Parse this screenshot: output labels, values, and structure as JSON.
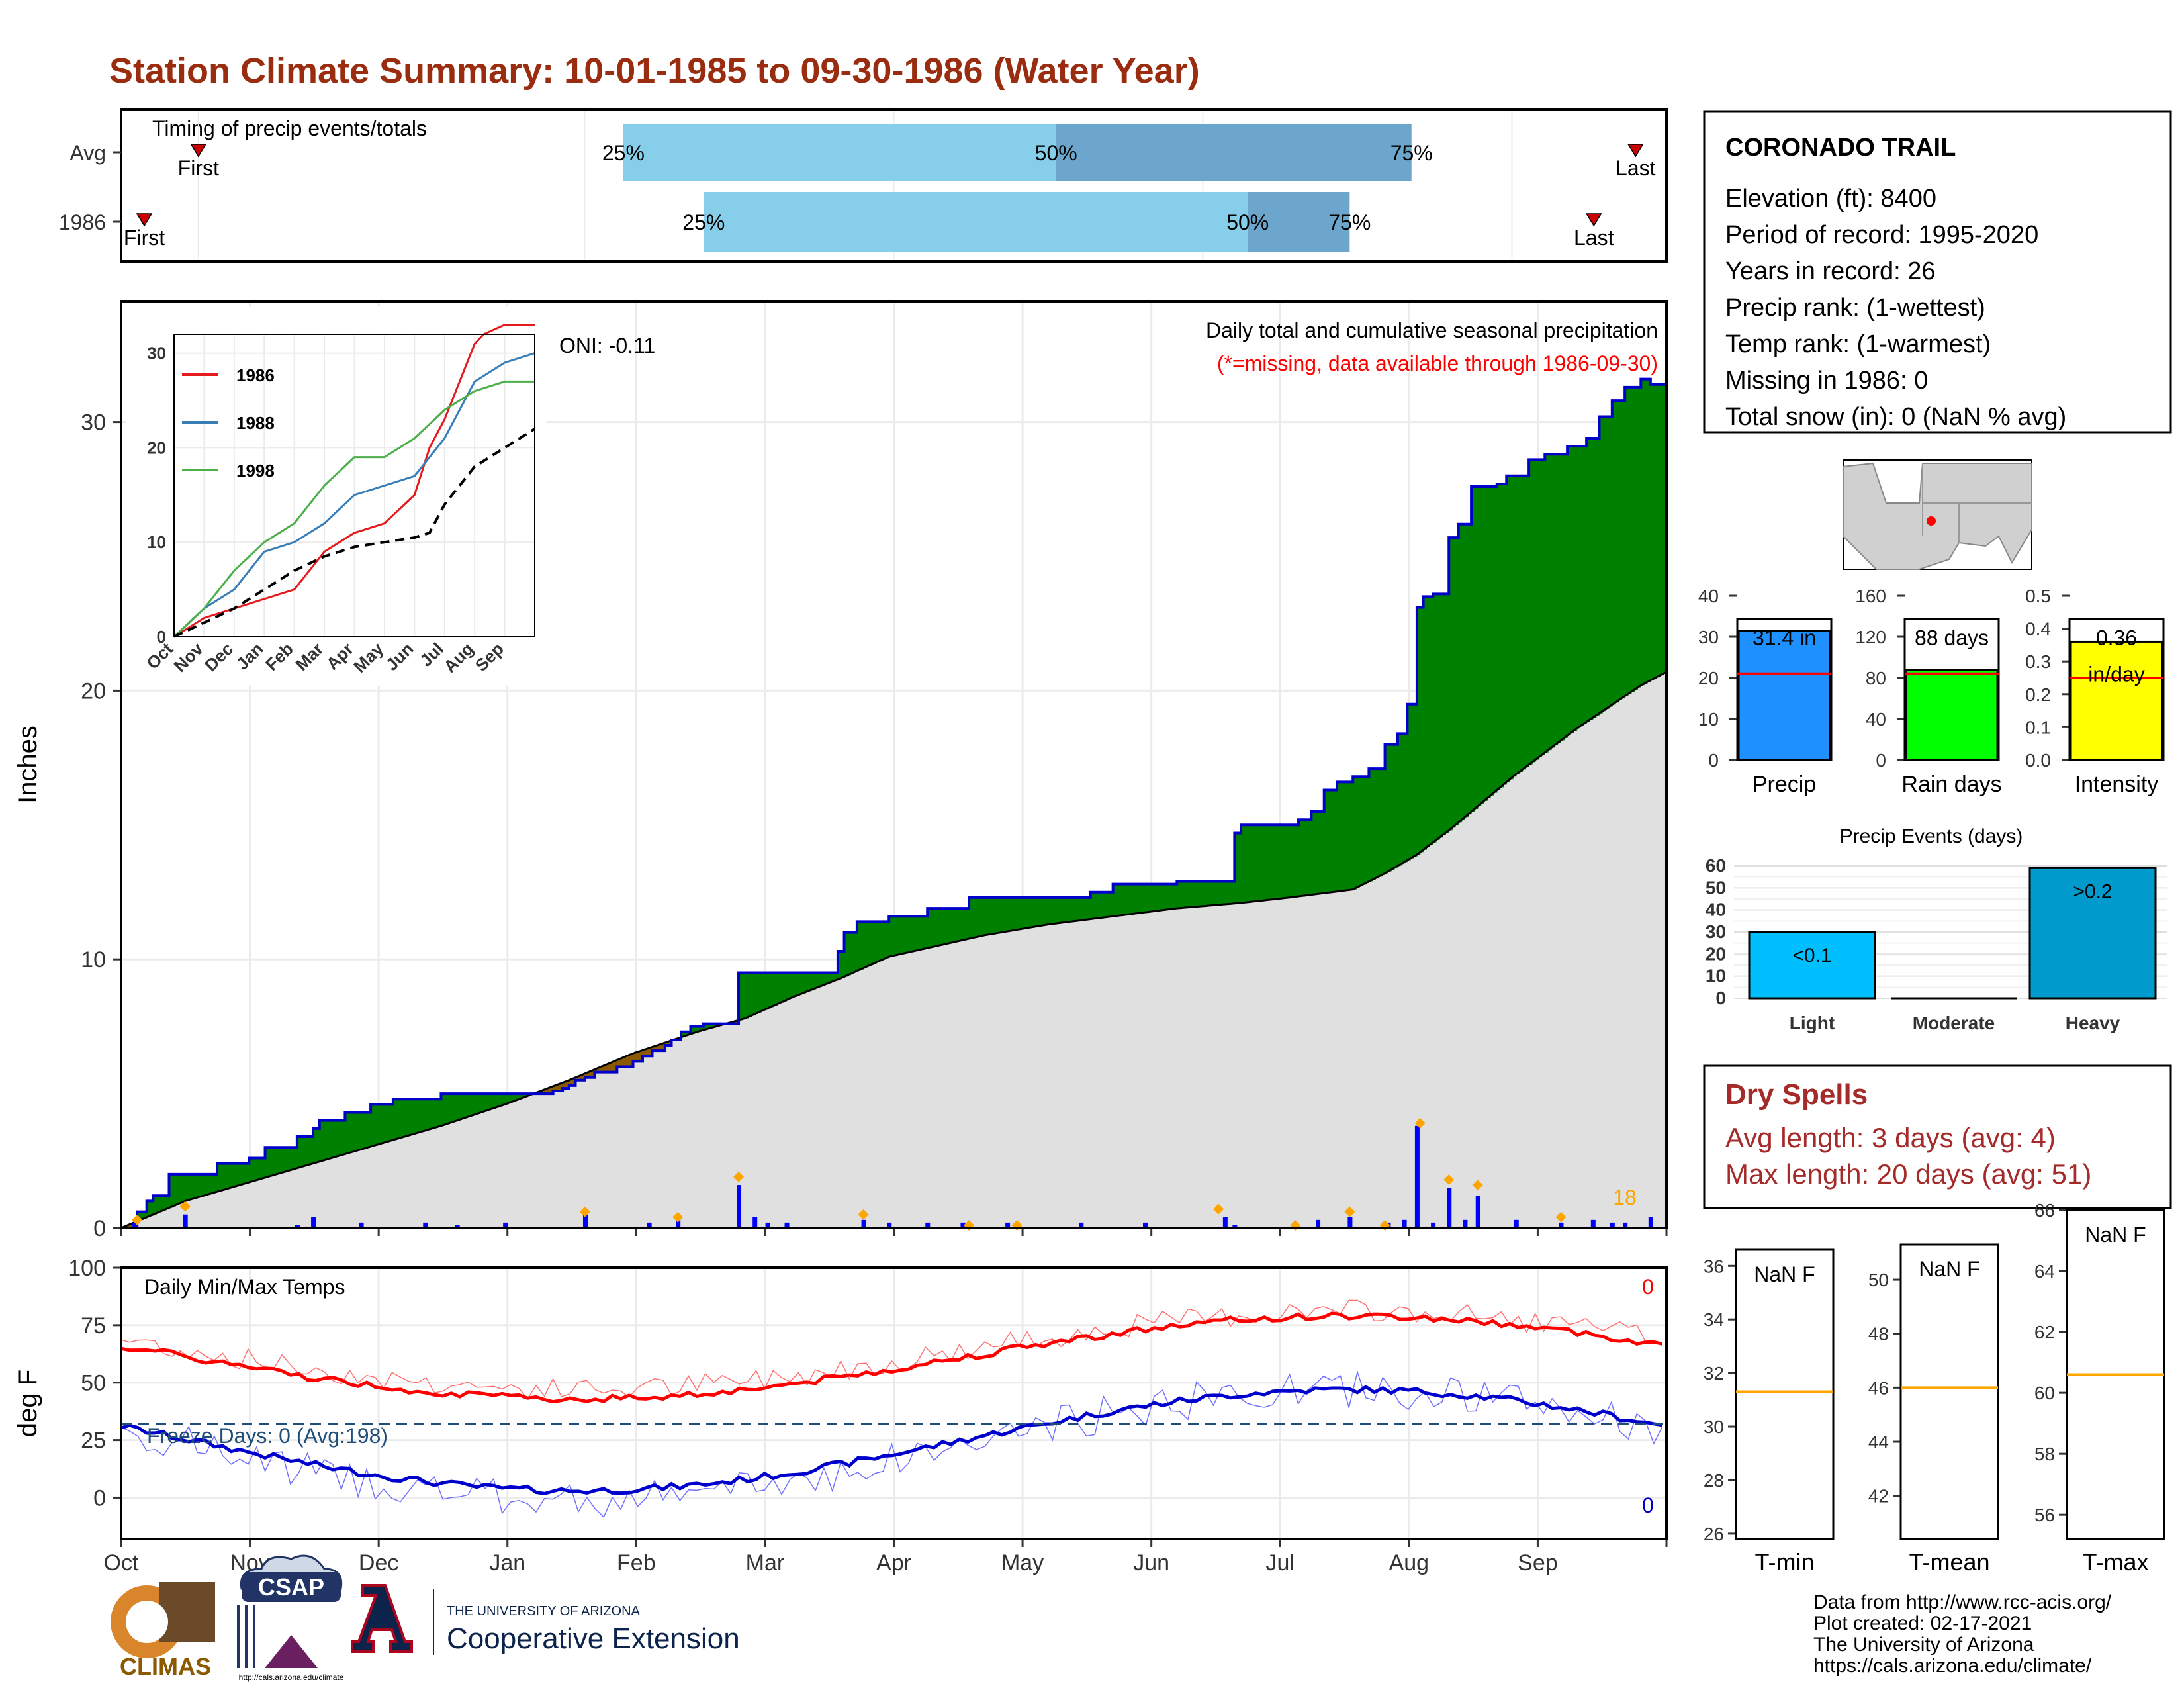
{
  "title": "Station Climate Summary: 10-01-1985 to 09-30-1986 (Water Year)",
  "colors": {
    "title": "#9a2d10",
    "precip_above": "#008000",
    "precip_below": "#8b5a00",
    "avg_fill": "#e0e0e0",
    "blue_line": "#0000cc",
    "daily_bar": "#0000ff",
    "orange_mark": "#ffa500",
    "tmax": "#ff0000",
    "tmin": "#0000ff",
    "light_blue": "#87ceeb",
    "steel_blue": "#6ca6cd",
    "red_marker": "#cc0000"
  },
  "chart_data": [
    {
      "id": "timing",
      "type": "bar",
      "title": "Timing of precip events/totals",
      "rows": [
        {
          "label": "Avg",
          "first": 0.05,
          "last": 0.98,
          "p25": 0.325,
          "p50": 0.605,
          "p75": 0.835,
          "labels": {
            "first": "First",
            "last": "Last",
            "p25": "25%",
            "p50": "50%",
            "p75": "75%"
          }
        },
        {
          "label": "1986",
          "first": 0.015,
          "last": 0.953,
          "p25": 0.377,
          "p50": 0.729,
          "p75": 0.795,
          "labels": {
            "first": "First",
            "last": "Last",
            "p25": "25%",
            "p50": "50%",
            "p75": "75%"
          }
        }
      ]
    },
    {
      "id": "precip",
      "type": "area",
      "title": "Daily total and cumulative seasonal precipitation",
      "subtitle": "(*=missing, data available through 1986-09-30)",
      "ylabel": "Inches",
      "ylim": [
        0,
        34.5
      ],
      "yticks": [
        0,
        10,
        20,
        30
      ],
      "annotation": "ONI: -0.11",
      "corner_value": "18",
      "cumulative_1986": [
        [
          0,
          0
        ],
        [
          5,
          0.6
        ],
        [
          8,
          1.0
        ],
        [
          10,
          1.2
        ],
        [
          15,
          2.0
        ],
        [
          30,
          2.4
        ],
        [
          40,
          2.6
        ],
        [
          45,
          3.0
        ],
        [
          55,
          3.4
        ],
        [
          60,
          3.7
        ],
        [
          62,
          4.0
        ],
        [
          70,
          4.3
        ],
        [
          78,
          4.6
        ],
        [
          85,
          4.8
        ],
        [
          98,
          4.8
        ],
        [
          100,
          5.0
        ],
        [
          117,
          5.0
        ],
        [
          130,
          5.0
        ],
        [
          135,
          5.1
        ],
        [
          138,
          5.2
        ],
        [
          140,
          5.3
        ],
        [
          142,
          5.5
        ],
        [
          145,
          5.6
        ],
        [
          148,
          5.8
        ],
        [
          155,
          6.0
        ],
        [
          160,
          6.2
        ],
        [
          163,
          6.4
        ],
        [
          166,
          6.6
        ],
        [
          170,
          6.8
        ],
        [
          172,
          7.0
        ],
        [
          175,
          7.3
        ],
        [
          178,
          7.5
        ],
        [
          182,
          7.6
        ],
        [
          192,
          7.6
        ],
        [
          193,
          9.5
        ],
        [
          222,
          9.5
        ],
        [
          224,
          10.3
        ],
        [
          226,
          11.0
        ],
        [
          230,
          11.4
        ],
        [
          240,
          11.6
        ],
        [
          252,
          11.9
        ],
        [
          265,
          12.3
        ],
        [
          280,
          12.3
        ],
        [
          297,
          12.3
        ],
        [
          303,
          12.5
        ],
        [
          310,
          12.8
        ],
        [
          330,
          12.9
        ],
        [
          345,
          12.9
        ],
        [
          348,
          14.7
        ],
        [
          350,
          15.0
        ],
        [
          362,
          15.0
        ],
        [
          368,
          15.2
        ],
        [
          372,
          15.5
        ],
        [
          376,
          16.3
        ],
        [
          380,
          16.6
        ],
        [
          385,
          16.8
        ],
        [
          390,
          17.1
        ],
        [
          395,
          18.0
        ],
        [
          399,
          18.4
        ],
        [
          402,
          19.5
        ],
        [
          405,
          23.1
        ],
        [
          407,
          23.5
        ],
        [
          410,
          23.6
        ],
        [
          415,
          25.7
        ],
        [
          418,
          26.2
        ],
        [
          422,
          27.6
        ],
        [
          430,
          27.7
        ],
        [
          433,
          28.0
        ],
        [
          440,
          28.6
        ],
        [
          445,
          28.8
        ],
        [
          452,
          29.1
        ],
        [
          458,
          29.4
        ],
        [
          462,
          30.2
        ],
        [
          466,
          30.8
        ],
        [
          470,
          31.3
        ],
        [
          475,
          31.6
        ],
        [
          478,
          31.4
        ],
        [
          483,
          31.4
        ]
      ],
      "cumulative_avg": [
        [
          0,
          0
        ],
        [
          10,
          0.5
        ],
        [
          20,
          1.0
        ],
        [
          40,
          1.7
        ],
        [
          60,
          2.4
        ],
        [
          80,
          3.1
        ],
        [
          100,
          3.8
        ],
        [
          120,
          4.6
        ],
        [
          140,
          5.5
        ],
        [
          160,
          6.5
        ],
        [
          180,
          7.3
        ],
        [
          195,
          7.8
        ],
        [
          210,
          8.6
        ],
        [
          225,
          9.3
        ],
        [
          240,
          10.1
        ],
        [
          255,
          10.5
        ],
        [
          270,
          10.9
        ],
        [
          290,
          11.3
        ],
        [
          310,
          11.6
        ],
        [
          330,
          11.9
        ],
        [
          350,
          12.1
        ],
        [
          365,
          12.3
        ],
        [
          385,
          12.6
        ],
        [
          395,
          13.2
        ],
        [
          405,
          13.9
        ],
        [
          415,
          14.8
        ],
        [
          425,
          15.8
        ],
        [
          435,
          16.8
        ],
        [
          445,
          17.7
        ],
        [
          455,
          18.6
        ],
        [
          465,
          19.4
        ],
        [
          475,
          20.2
        ],
        [
          483,
          20.7
        ]
      ],
      "daily": [
        [
          4,
          0.2
        ],
        [
          20,
          0.5
        ],
        [
          55,
          0.1
        ],
        [
          60,
          0.4
        ],
        [
          75,
          0.2
        ],
        [
          95,
          0.2
        ],
        [
          105,
          0.1
        ],
        [
          120,
          0.2
        ],
        [
          145,
          0.5
        ],
        [
          165,
          0.2
        ],
        [
          174,
          0.3
        ],
        [
          193,
          1.6
        ],
        [
          198,
          0.4
        ],
        [
          202,
          0.2
        ],
        [
          208,
          0.2
        ],
        [
          232,
          0.3
        ],
        [
          240,
          0.2
        ],
        [
          252,
          0.2
        ],
        [
          263,
          0.2
        ],
        [
          277,
          0.2
        ],
        [
          300,
          0.2
        ],
        [
          320,
          0.2
        ],
        [
          345,
          0.4
        ],
        [
          348,
          0.1
        ],
        [
          374,
          0.3
        ],
        [
          384,
          0.4
        ],
        [
          396,
          0.2
        ],
        [
          401,
          0.3
        ],
        [
          405,
          3.8
        ],
        [
          410,
          0.2
        ],
        [
          415,
          1.5
        ],
        [
          420,
          0.3
        ],
        [
          424,
          1.2
        ],
        [
          436,
          0.3
        ],
        [
          450,
          0.2
        ],
        [
          460,
          0.3
        ],
        [
          466,
          0.2
        ],
        [
          470,
          0.2
        ],
        [
          478,
          0.4
        ]
      ],
      "markers": [
        [
          5,
          0.3
        ],
        [
          20,
          0.8
        ],
        [
          145,
          0.6
        ],
        [
          174,
          0.4
        ],
        [
          193,
          1.9
        ],
        [
          232,
          0.5
        ],
        [
          265,
          0.1
        ],
        [
          280,
          0.1
        ],
        [
          343,
          0.7
        ],
        [
          367,
          0.1
        ],
        [
          384,
          0.6
        ],
        [
          395,
          0.1
        ],
        [
          406,
          3.9
        ],
        [
          415,
          1.8
        ],
        [
          424,
          1.6
        ],
        [
          450,
          0.4
        ]
      ]
    },
    {
      "id": "inset",
      "type": "line",
      "xticks": [
        "Oct",
        "Nov",
        "Dec",
        "Jan",
        "Feb",
        "Mar",
        "Apr",
        "May",
        "Jun",
        "Jul",
        "Aug",
        "Sep"
      ],
      "yticks": [
        0,
        10,
        20,
        30
      ],
      "ylim": [
        0,
        32
      ],
      "series": [
        {
          "name": "1986",
          "color": "#e41a1c",
          "values": [
            [
              0,
              0
            ],
            [
              0.5,
              1
            ],
            [
              1,
              2
            ],
            [
              2,
              3
            ],
            [
              3,
              4
            ],
            [
              4,
              5
            ],
            [
              5,
              9
            ],
            [
              6,
              11
            ],
            [
              7,
              12
            ],
            [
              8,
              15
            ],
            [
              8.5,
              20
            ],
            [
              9,
              23
            ],
            [
              9.5,
              27
            ],
            [
              10,
              31
            ],
            [
              10.3,
              32
            ],
            [
              11,
              33
            ],
            [
              12,
              33
            ]
          ]
        },
        {
          "name": "1988",
          "color": "#377eb8",
          "values": [
            [
              0,
              0
            ],
            [
              1,
              3
            ],
            [
              2,
              5
            ],
            [
              3,
              9
            ],
            [
              4,
              10
            ],
            [
              5,
              12
            ],
            [
              6,
              15
            ],
            [
              7,
              16
            ],
            [
              8,
              17
            ],
            [
              9,
              21
            ],
            [
              9.5,
              24
            ],
            [
              10,
              27
            ],
            [
              11,
              29
            ],
            [
              12,
              30
            ]
          ]
        },
        {
          "name": "1998",
          "color": "#4daf4a",
          "values": [
            [
              0,
              0
            ],
            [
              1,
              3
            ],
            [
              2,
              7
            ],
            [
              3,
              10
            ],
            [
              4,
              12
            ],
            [
              5,
              16
            ],
            [
              6,
              19
            ],
            [
              7,
              19
            ],
            [
              8,
              21
            ],
            [
              9,
              24
            ],
            [
              10,
              26
            ],
            [
              11,
              27
            ],
            [
              12,
              27
            ]
          ]
        },
        {
          "name": "",
          "color": "#000000",
          "dashed": true,
          "values": [
            [
              0,
              0
            ],
            [
              1,
              1.5
            ],
            [
              2,
              3
            ],
            [
              3,
              5
            ],
            [
              4,
              7
            ],
            [
              5,
              8.5
            ],
            [
              6,
              9.5
            ],
            [
              7,
              10
            ],
            [
              8,
              10.5
            ],
            [
              8.5,
              11
            ],
            [
              9,
              14
            ],
            [
              10,
              18
            ],
            [
              11,
              20
            ],
            [
              12,
              22
            ]
          ]
        }
      ]
    },
    {
      "id": "temps",
      "type": "line",
      "title": "Daily Min/Max Temps",
      "ylabel": "deg F",
      "ylim": [
        -18,
        100
      ],
      "yticks": [
        0,
        25,
        50,
        75,
        100
      ],
      "freeze_label": "Freeze Days: 0 (Avg:198)",
      "max_count": "0",
      "min_count": "0",
      "xticks": [
        "Oct",
        "Nov",
        "Dec",
        "Jan",
        "Feb",
        "Mar",
        "Apr",
        "May",
        "Jun",
        "Jul",
        "Aug",
        "Sep"
      ]
    },
    {
      "id": "summary_bars",
      "type": "bar",
      "panels": [
        {
          "name": "Precip",
          "value": 31.4,
          "avg": 21,
          "label": "31.4 in",
          "color": "#1e90ff",
          "yticks": [
            0,
            10,
            20,
            30,
            40
          ],
          "ylim": [
            0,
            40
          ]
        },
        {
          "name": "Rain days",
          "value": 88,
          "avg": 84,
          "label": "88 days",
          "color": "#00ff00",
          "yticks": [
            0,
            40,
            80,
            120,
            160
          ],
          "ylim": [
            0,
            160
          ]
        },
        {
          "name": "Intensity",
          "value": 0.36,
          "avg": 0.25,
          "label": "0.36",
          "label2": "in/day",
          "color": "#ffff00",
          "yticks": [
            "0.0",
            "0.1",
            "0.2",
            "0.3",
            "0.4",
            "0.5"
          ],
          "ylim": [
            0,
            0.5
          ]
        }
      ]
    },
    {
      "id": "events",
      "type": "bar",
      "title": "Precip Events (days)",
      "categories": [
        "Light",
        "Moderate",
        "Heavy"
      ],
      "values": [
        30,
        0,
        59
      ],
      "labels": [
        "<0.1",
        "",
        ">0.2"
      ],
      "colors": [
        "#00bfff",
        "#00bfff",
        "#009acd"
      ],
      "yticks": [
        0,
        10,
        20,
        30,
        40,
        50,
        60
      ],
      "ylim": [
        0,
        60
      ]
    },
    {
      "id": "temp_boxes",
      "type": "bar",
      "panels": [
        {
          "name": "T-min",
          "label": "NaN F",
          "avg": 31.3,
          "yticks": [
            26,
            28,
            30,
            32,
            34,
            36
          ],
          "ylim": [
            25.8,
            36.6
          ]
        },
        {
          "name": "T-mean",
          "label": "NaN F",
          "avg": 46,
          "yticks": [
            42,
            44,
            46,
            48,
            50
          ],
          "ylim": [
            40.4,
            51.3
          ]
        },
        {
          "name": "T-max",
          "label": "NaN F",
          "avg": 60.6,
          "yticks": [
            56,
            58,
            60,
            62,
            64,
            66
          ],
          "ylim": [
            55.2,
            66
          ]
        }
      ]
    }
  ],
  "station": {
    "name": "CORONADO TRAIL",
    "lines": [
      "Elevation (ft): 8400",
      "Period of record: 1995-2020",
      "Years in record: 26",
      "Precip rank:  (1-wettest)",
      "Temp rank:  (1-warmest)",
      "Missing in 1986: 0",
      "Total snow (in): 0 (NaN % avg)"
    ]
  },
  "dry_spells": {
    "title": "Dry Spells",
    "lines": [
      "Avg length: 3 days (avg: 4)",
      "Max length: 20 days (avg: 51)"
    ]
  },
  "footer": {
    "lines": [
      "Data from http://www.rcc-acis.org/",
      "Plot created: 02-17-2021",
      "The University of Arizona",
      "https://cals.arizona.edu/climate/"
    ],
    "logos": {
      "climas": "CLIMAS",
      "csap": "CSAP",
      "csap_url": "http://cals.arizona.edu/climate",
      "ua_small": "THE UNIVERSITY OF ARIZONA",
      "ua_big": "Cooperative Extension"
    }
  }
}
